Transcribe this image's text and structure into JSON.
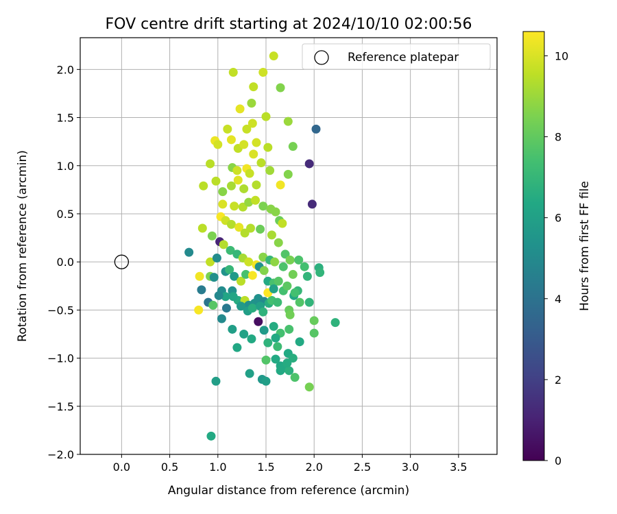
{
  "chart_data": {
    "type": "scatter",
    "title": "FOV centre drift starting at 2024/10/10 02:00:56",
    "xlabel": "Angular distance from reference (arcmin)",
    "ylabel": "Rotation from reference (arcmin)",
    "xlim": [
      -0.43,
      3.9
    ],
    "ylim": [
      -2.0,
      2.33
    ],
    "xticks": [
      0.0,
      0.5,
      1.0,
      1.5,
      2.0,
      2.5,
      3.0,
      3.5
    ],
    "xtick_labels": [
      "0.0",
      "0.5",
      "1.0",
      "1.5",
      "2.0",
      "2.5",
      "3.0",
      "3.5"
    ],
    "yticks": [
      -2.0,
      -1.5,
      -1.0,
      -0.5,
      0.0,
      0.5,
      1.0,
      1.5,
      2.0
    ],
    "ytick_labels": [
      "−2.0",
      "−1.5",
      "−1.0",
      "−0.5",
      "0.0",
      "0.5",
      "1.0",
      "1.5",
      "2.0"
    ],
    "grid": true,
    "legend_position": "top-right",
    "legend_entries": [
      "Reference platepar"
    ],
    "reference_point": {
      "x": 0.0,
      "y": 0.0
    },
    "colormap": "viridis",
    "colorbar_label": "Hours from first FF file",
    "colorbar_range": [
      0,
      10.6
    ],
    "colorbar_ticks": [
      0,
      2,
      4,
      6,
      8,
      10
    ],
    "colorbar_tick_labels": [
      "0",
      "2",
      "4",
      "6",
      "8",
      "10"
    ],
    "points": [
      [
        1.16,
        1.97,
        9.6
      ],
      [
        1.37,
        1.82,
        9.6
      ],
      [
        1.47,
        1.97,
        9.8
      ],
      [
        1.58,
        2.14,
        9.7
      ],
      [
        1.65,
        1.81,
        8.6
      ],
      [
        1.23,
        1.59,
        10.2
      ],
      [
        1.35,
        1.65,
        9.0
      ],
      [
        1.5,
        1.51,
        9.5
      ],
      [
        1.73,
        1.46,
        9.0
      ],
      [
        1.3,
        1.38,
        9.7
      ],
      [
        1.36,
        1.44,
        9.8
      ],
      [
        1.1,
        1.38,
        9.7
      ],
      [
        0.97,
        1.26,
        10.3
      ],
      [
        1.0,
        1.22,
        9.9
      ],
      [
        1.14,
        1.27,
        10.2
      ],
      [
        1.21,
        1.18,
        9.6
      ],
      [
        1.27,
        1.22,
        9.9
      ],
      [
        1.4,
        1.24,
        9.9
      ],
      [
        1.52,
        1.19,
        9.5
      ],
      [
        1.78,
        1.2,
        8.4
      ],
      [
        0.92,
        1.02,
        9.5
      ],
      [
        1.15,
        0.98,
        8.7
      ],
      [
        1.3,
        0.97,
        10.4
      ],
      [
        1.45,
        1.03,
        9.5
      ],
      [
        1.54,
        0.95,
        9.1
      ],
      [
        1.2,
        0.95,
        9.8
      ],
      [
        1.33,
        0.92,
        9.7
      ],
      [
        1.37,
        1.12,
        10.0
      ],
      [
        1.95,
        1.02,
        1.3
      ],
      [
        2.02,
        1.38,
        3.5
      ],
      [
        0.98,
        0.84,
        9.5
      ],
      [
        1.05,
        0.73,
        8.7
      ],
      [
        1.21,
        0.85,
        10.1
      ],
      [
        1.27,
        0.76,
        9.3
      ],
      [
        1.4,
        0.8,
        9.4
      ],
      [
        1.65,
        0.8,
        10.4
      ],
      [
        1.73,
        0.91,
        8.6
      ],
      [
        1.14,
        0.79,
        9.2
      ],
      [
        0.85,
        0.79,
        9.5
      ],
      [
        1.98,
        0.6,
        1.3
      ],
      [
        1.05,
        0.6,
        10.0
      ],
      [
        1.17,
        0.58,
        9.7
      ],
      [
        1.26,
        0.57,
        9.4
      ],
      [
        1.32,
        0.62,
        8.9
      ],
      [
        1.39,
        0.64,
        9.6
      ],
      [
        1.47,
        0.58,
        8.5
      ],
      [
        1.55,
        0.55,
        8.7
      ],
      [
        1.6,
        0.52,
        8.7
      ],
      [
        1.64,
        0.43,
        8.2
      ],
      [
        1.67,
        0.4,
        9.6
      ],
      [
        1.03,
        0.47,
        10.5
      ],
      [
        1.08,
        0.43,
        9.8
      ],
      [
        1.14,
        0.39,
        9.4
      ],
      [
        1.22,
        0.36,
        10.2
      ],
      [
        1.28,
        0.3,
        9.4
      ],
      [
        1.34,
        0.35,
        9.4
      ],
      [
        1.44,
        0.34,
        8.2
      ],
      [
        1.56,
        0.28,
        9.2
      ],
      [
        1.63,
        0.2,
        8.7
      ],
      [
        1.7,
        0.08,
        7.7
      ],
      [
        0.84,
        0.35,
        9.5
      ],
      [
        0.94,
        0.27,
        8.5
      ],
      [
        1.02,
        0.21,
        1.1
      ],
      [
        1.06,
        0.18,
        9.4
      ],
      [
        1.13,
        0.12,
        7.2
      ],
      [
        1.2,
        0.08,
        7.0
      ],
      [
        1.26,
        0.04,
        9.2
      ],
      [
        1.32,
        0.0,
        9.8
      ],
      [
        1.4,
        -0.03,
        10.4
      ],
      [
        1.47,
        0.05,
        8.7
      ],
      [
        1.54,
        0.02,
        7.0
      ],
      [
        1.59,
        0.0,
        8.8
      ],
      [
        1.68,
        -0.05,
        7.6
      ],
      [
        1.75,
        0.02,
        8.4
      ],
      [
        1.84,
        0.02,
        7.6
      ],
      [
        0.7,
        0.1,
        5.0
      ],
      [
        0.92,
        0.0,
        9.6
      ],
      [
        0.99,
        0.04,
        5.1
      ],
      [
        1.08,
        -0.1,
        5.4
      ],
      [
        1.12,
        -0.08,
        7.0
      ],
      [
        1.17,
        -0.15,
        5.7
      ],
      [
        1.24,
        -0.2,
        9.5
      ],
      [
        1.29,
        -0.13,
        7.5
      ],
      [
        1.36,
        -0.14,
        10.5
      ],
      [
        1.43,
        -0.05,
        5.3
      ],
      [
        1.48,
        -0.09,
        8.6
      ],
      [
        1.52,
        -0.2,
        6.4
      ],
      [
        1.58,
        -0.22,
        7.5
      ],
      [
        1.63,
        -0.2,
        7.8
      ],
      [
        1.68,
        -0.3,
        7.4
      ],
      [
        0.81,
        -0.15,
        10.4
      ],
      [
        0.83,
        -0.29,
        4.4
      ],
      [
        0.92,
        -0.15,
        8.5
      ],
      [
        0.96,
        -0.16,
        5.2
      ],
      [
        1.04,
        -0.3,
        5.1
      ],
      [
        1.08,
        -0.36,
        6.2
      ],
      [
        1.15,
        -0.3,
        5.3
      ],
      [
        1.21,
        -0.4,
        6.5
      ],
      [
        1.28,
        -0.4,
        9.5
      ],
      [
        1.32,
        -0.45,
        5.2
      ],
      [
        1.38,
        -0.43,
        5.4
      ],
      [
        1.42,
        -0.38,
        5.3
      ],
      [
        1.48,
        -0.41,
        5.0
      ],
      [
        1.53,
        -0.43,
        6.6
      ],
      [
        1.56,
        -0.4,
        7.4
      ],
      [
        0.8,
        -0.5,
        10.5
      ],
      [
        0.9,
        -0.42,
        4.1
      ],
      [
        0.95,
        -0.45,
        7.8
      ],
      [
        1.01,
        -0.35,
        4.9
      ],
      [
        1.09,
        -0.48,
        4.3
      ],
      [
        1.16,
        -0.36,
        6.2
      ],
      [
        1.24,
        -0.46,
        5.7
      ],
      [
        1.31,
        -0.51,
        5.9
      ],
      [
        1.36,
        -0.48,
        6.6
      ],
      [
        1.44,
        -0.46,
        6.0
      ],
      [
        1.47,
        -0.52,
        6.8
      ],
      [
        1.52,
        -0.32,
        10.6
      ],
      [
        1.58,
        -0.28,
        6.1
      ],
      [
        1.62,
        -0.42,
        7.2
      ],
      [
        1.74,
        -0.5,
        8.1
      ],
      [
        1.75,
        -0.55,
        8.3
      ],
      [
        1.79,
        -0.35,
        6.3
      ],
      [
        1.83,
        -0.3,
        7.0
      ],
      [
        1.85,
        -0.42,
        7.7
      ],
      [
        1.95,
        -0.42,
        6.9
      ],
      [
        1.04,
        -0.59,
        5.0
      ],
      [
        1.15,
        -0.7,
        5.9
      ],
      [
        1.27,
        -0.75,
        6.1
      ],
      [
        1.35,
        -0.8,
        6.4
      ],
      [
        1.42,
        -0.62,
        0.4
      ],
      [
        1.48,
        -0.71,
        5.7
      ],
      [
        1.52,
        -0.84,
        6.8
      ],
      [
        1.58,
        -0.67,
        6.5
      ],
      [
        1.65,
        -0.74,
        7.4
      ],
      [
        1.74,
        -0.7,
        7.5
      ],
      [
        1.6,
        -0.79,
        6.4
      ],
      [
        1.62,
        -0.88,
        7.2
      ],
      [
        1.73,
        -0.95,
        6.4
      ],
      [
        1.78,
        -1.0,
        6.6
      ],
      [
        1.85,
        -0.83,
        6.4
      ],
      [
        1.2,
        -0.89,
        6.3
      ],
      [
        1.5,
        -1.02,
        7.7
      ],
      [
        1.6,
        -1.01,
        6.4
      ],
      [
        1.65,
        -1.08,
        6.3
      ],
      [
        1.69,
        -1.1,
        6.4
      ],
      [
        1.74,
        -1.13,
        6.7
      ],
      [
        1.65,
        -1.13,
        6.4
      ],
      [
        1.72,
        -1.05,
        6.5
      ],
      [
        1.8,
        -1.2,
        7.6
      ],
      [
        1.33,
        -1.16,
        6.0
      ],
      [
        1.46,
        -1.22,
        5.6
      ],
      [
        1.5,
        -1.24,
        5.9
      ],
      [
        0.98,
        -1.24,
        5.9
      ],
      [
        1.95,
        -1.3,
        8.4
      ],
      [
        0.93,
        -1.81,
        6.4
      ],
      [
        2.0,
        -0.61,
        8.1
      ],
      [
        2.0,
        -0.74,
        7.8
      ],
      [
        2.22,
        -0.63,
        6.8
      ],
      [
        2.05,
        -0.06,
        6.7
      ],
      [
        2.06,
        -0.11,
        6.9
      ],
      [
        1.93,
        -0.15,
        6.9
      ],
      [
        1.9,
        -0.05,
        7.4
      ],
      [
        1.78,
        -0.13,
        8.3
      ],
      [
        1.8,
        -0.32,
        7.4
      ],
      [
        1.72,
        -0.25,
        7.9
      ]
    ]
  }
}
